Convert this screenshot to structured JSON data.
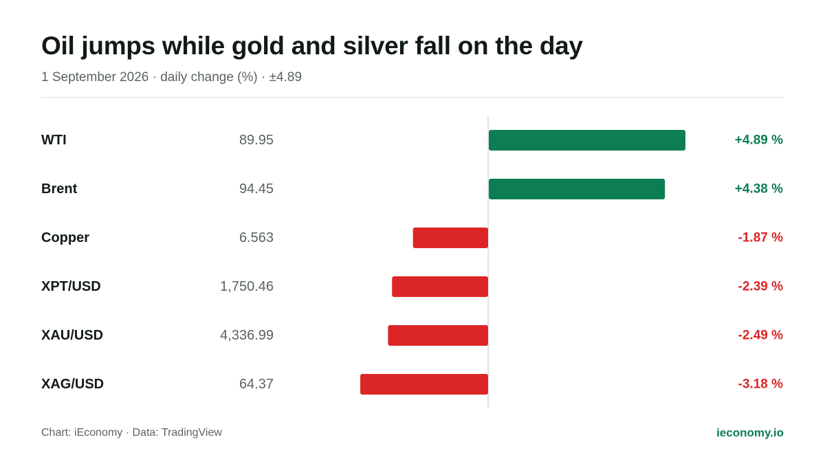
{
  "header": {
    "title": "Oil jumps while gold and silver fall on the day",
    "subtitle": "1 September 2026 · daily change (%) · ±4.89"
  },
  "footer": {
    "source": "Chart: iEconomy · Data: TradingView",
    "brand": "ieconomy.io"
  },
  "colors": {
    "positive": "#0d7d52",
    "negative": "#dc2626",
    "axis": "#d9dcda",
    "label": "#111a17",
    "price": "#5a6360"
  },
  "chart_data": {
    "type": "bar",
    "orientation": "horizontal",
    "scale_max_abs": 4.89,
    "grid": false,
    "legend": "none",
    "categories": [
      "WTI",
      "Brent",
      "Copper",
      "XPT/USD",
      "XAU/USD",
      "XAG/USD"
    ],
    "prices": [
      "89.95",
      "94.45",
      "6.563",
      "1,750.46",
      "4,336.99",
      "64.37"
    ],
    "values": [
      4.89,
      4.38,
      -1.87,
      -2.39,
      -2.49,
      -3.18
    ],
    "value_labels": [
      "+4.89 %",
      "+4.38 %",
      "-1.87 %",
      "-2.39 %",
      "-2.49 %",
      "-3.18 %"
    ]
  }
}
